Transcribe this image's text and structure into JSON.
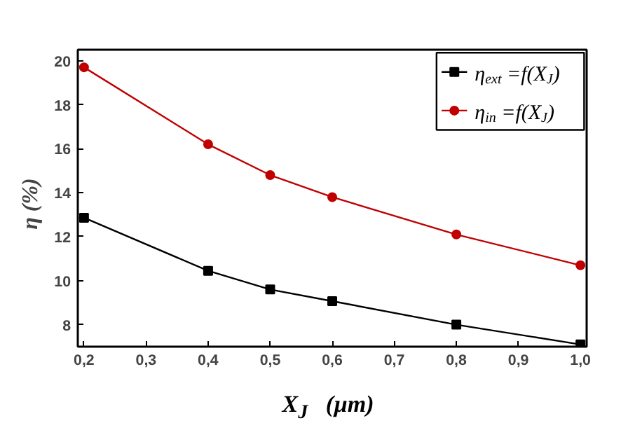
{
  "chart_data": {
    "type": "line",
    "xlabel": "X$_{J}$   (µm)",
    "ylabel": "η   (%)",
    "x": [
      0.2,
      0.4,
      0.5,
      0.6,
      0.8,
      1.0
    ],
    "series": [
      {
        "name": "η$_{ext}$ =f(X$_{J}$)",
        "color": "#000000",
        "marker": "square",
        "values": [
          12.86,
          10.45,
          9.6,
          9.07,
          8.0,
          7.1
        ]
      },
      {
        "name": "η$_{in}$ =f(X$_{J}$)",
        "color": "#c00000",
        "marker": "circle",
        "values": [
          19.7,
          16.2,
          14.8,
          13.8,
          12.1,
          10.7
        ]
      }
    ],
    "xlim": [
      0.19,
      1.01
    ],
    "ylim": [
      7.0,
      20.5
    ],
    "xticks": [
      {
        "value": 0.2,
        "label": "0,2"
      },
      {
        "value": 0.3,
        "label": "0,3"
      },
      {
        "value": 0.4,
        "label": "0,4"
      },
      {
        "value": 0.5,
        "label": "0,5"
      },
      {
        "value": 0.6,
        "label": "0,6"
      },
      {
        "value": 0.7,
        "label": "0,7"
      },
      {
        "value": 0.8,
        "label": "0,8"
      },
      {
        "value": 0.9,
        "label": "0,9"
      },
      {
        "value": 1.0,
        "label": "1,0"
      }
    ],
    "yticks": [
      8,
      10,
      12,
      14,
      16,
      18,
      20
    ],
    "grid": false,
    "legend": "top right",
    "line_style": "solid"
  }
}
